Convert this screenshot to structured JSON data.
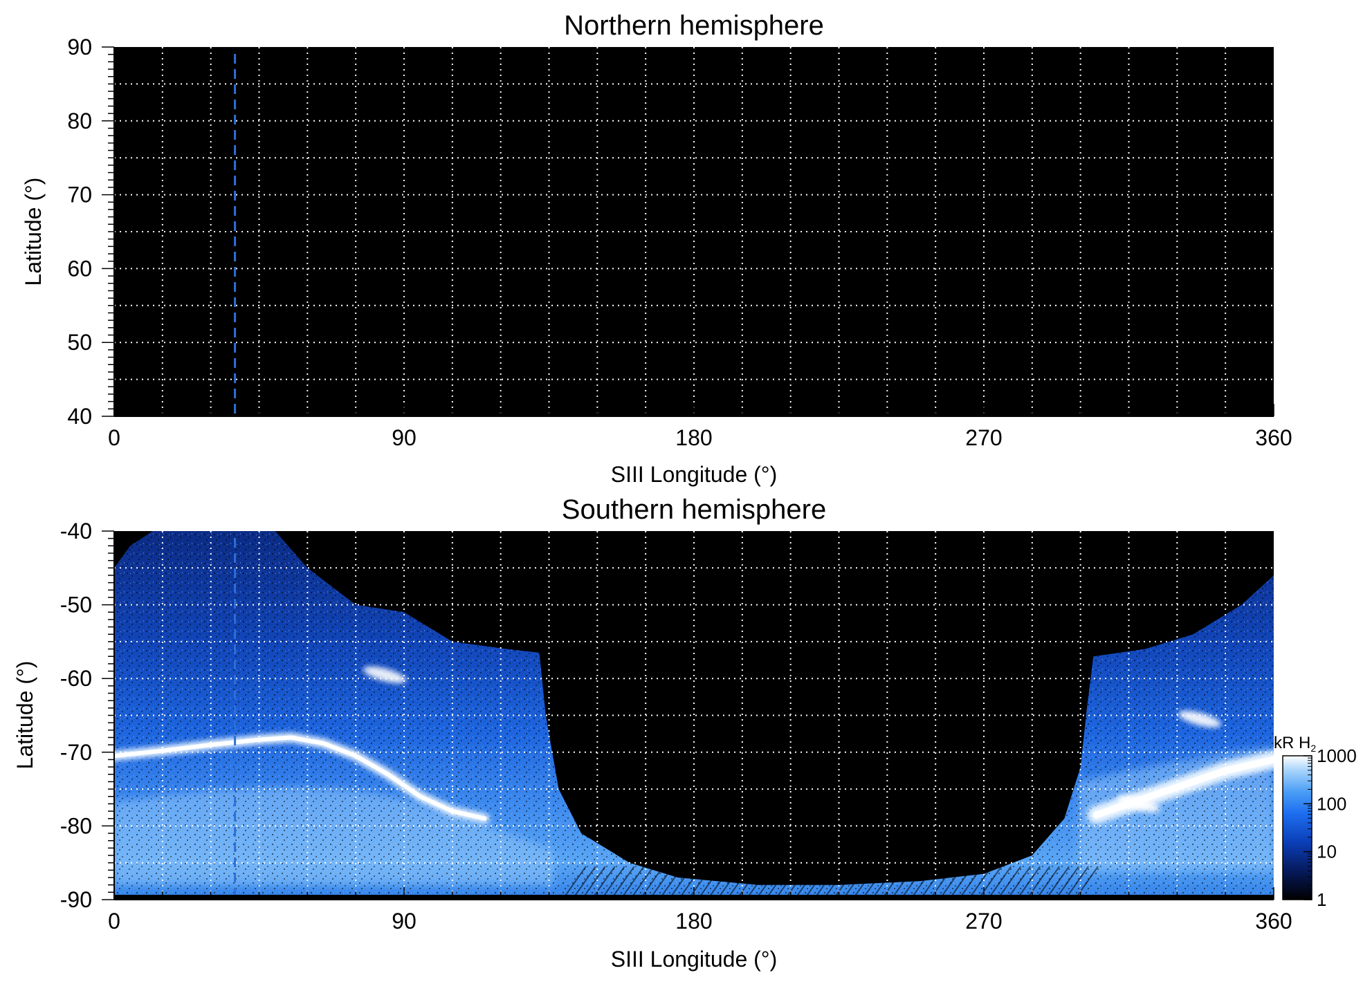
{
  "chart_data": [
    {
      "type": "heatmap",
      "title": "Northern hemisphere",
      "xlabel": "SIII Longitude (°)",
      "ylabel": "Latitude (°)",
      "xlim": [
        0,
        360
      ],
      "ylim": [
        40,
        90
      ],
      "xticks": [
        "0",
        "90",
        "180",
        "270",
        "360"
      ],
      "yticks": [
        "90",
        "80",
        "70",
        "60",
        "50",
        "40"
      ],
      "grid": "dotted, 15° longitude x 5° latitude",
      "background": "#000000",
      "reference_line": {
        "x": 37.5,
        "style": "dashed",
        "color": "#2f6fd8"
      },
      "emission": "none visible"
    },
    {
      "type": "heatmap",
      "title": "Southern hemisphere",
      "xlabel": "SIII Longitude (°)",
      "ylabel": "Latitude (°)",
      "xlim": [
        0,
        360
      ],
      "ylim": [
        -90,
        -40
      ],
      "xticks": [
        "0",
        "90",
        "180",
        "270",
        "360"
      ],
      "yticks": [
        "-40",
        "-50",
        "-60",
        "-70",
        "-80",
        "-90"
      ],
      "grid": "dotted, 15° longitude x 5° latitude",
      "background": "#000000",
      "reference_line": {
        "x": 37.5,
        "style": "dashed",
        "color": "#2f6fd8"
      },
      "coverage_boundary": [
        {
          "lon": 0,
          "lat": -45
        },
        {
          "lon": 5,
          "lat": -42
        },
        {
          "lon": 12,
          "lat": -40
        },
        {
          "lon": 50,
          "lat": -40
        },
        {
          "lon": 60,
          "lat": -45
        },
        {
          "lon": 75,
          "lat": -50
        },
        {
          "lon": 90,
          "lat": -51
        },
        {
          "lon": 105,
          "lat": -55
        },
        {
          "lon": 122,
          "lat": -56
        },
        {
          "lon": 132,
          "lat": -56.5
        },
        {
          "lon": 134,
          "lat": -65
        },
        {
          "lon": 138,
          "lat": -75
        },
        {
          "lon": 145,
          "lat": -81
        },
        {
          "lon": 160,
          "lat": -85
        },
        {
          "lon": 175,
          "lat": -87
        },
        {
          "lon": 200,
          "lat": -88
        },
        {
          "lon": 225,
          "lat": -88
        },
        {
          "lon": 250,
          "lat": -87.5
        },
        {
          "lon": 270,
          "lat": -86.5
        },
        {
          "lon": 285,
          "lat": -84
        },
        {
          "lon": 295,
          "lat": -79
        },
        {
          "lon": 300,
          "lat": -72
        },
        {
          "lon": 302,
          "lat": -64
        },
        {
          "lon": 304,
          "lat": -57
        },
        {
          "lon": 320,
          "lat": -56
        },
        {
          "lon": 335,
          "lat": -54
        },
        {
          "lon": 350,
          "lat": -50
        },
        {
          "lon": 360,
          "lat": -46
        }
      ],
      "main_oval": [
        {
          "lon": 0,
          "lat": -70.5
        },
        {
          "lon": 15,
          "lat": -69.8
        },
        {
          "lon": 30,
          "lat": -69
        },
        {
          "lon": 45,
          "lat": -68.3
        },
        {
          "lon": 55,
          "lat": -68
        },
        {
          "lon": 65,
          "lat": -68.8
        },
        {
          "lon": 75,
          "lat": -70.5
        },
        {
          "lon": 85,
          "lat": -73
        },
        {
          "lon": 95,
          "lat": -76
        },
        {
          "lon": 105,
          "lat": -78
        },
        {
          "lon": 115,
          "lat": -79
        }
      ],
      "main_oval_east": [
        {
          "lon": 305,
          "lat": -78.5
        },
        {
          "lon": 315,
          "lat": -77
        },
        {
          "lon": 325,
          "lat": -75.5
        },
        {
          "lon": 335,
          "lat": -74
        },
        {
          "lon": 345,
          "lat": -72.5
        },
        {
          "lon": 360,
          "lat": -71
        }
      ],
      "bright_spots": [
        {
          "lon": 84,
          "lat": -59.5,
          "label": "spot"
        },
        {
          "lon": 337,
          "lat": -65.5,
          "label": "spot"
        },
        {
          "lon": 318,
          "lat": -77,
          "label": "spot"
        }
      ],
      "colorbar": {
        "unit": "kR H",
        "unit_subscript": "2",
        "scale": "log",
        "range": [
          1,
          1000
        ],
        "ticks": [
          "1000",
          "100",
          "10",
          "1"
        ],
        "colors": [
          "#000000",
          "#061a5c",
          "#0b3fb8",
          "#1e6ef0",
          "#4a9ef5",
          "#a8d4fb",
          "#ffffff"
        ]
      }
    }
  ]
}
